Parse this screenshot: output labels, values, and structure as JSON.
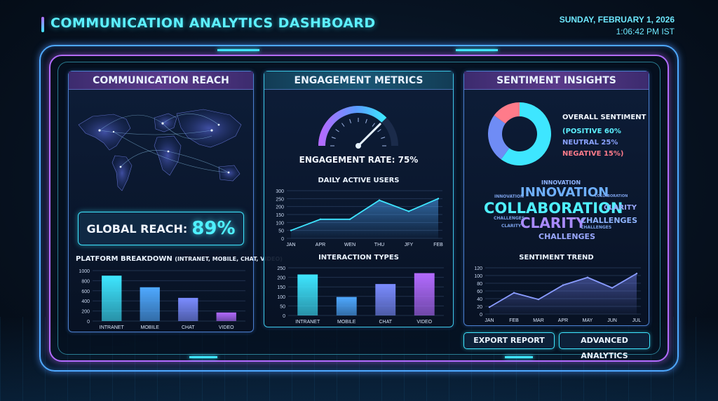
{
  "header": {
    "title": "COMMUNICATION ANALYTICS DASHBOARD",
    "date": "SUNDAY, FEBRUARY 1, 2026",
    "time": "1:06:42 PM IST"
  },
  "colors": {
    "cyan": "#3ee6ff",
    "blue": "#4fa9ff",
    "purple": "#b36bff",
    "indigo": "#7b8cff",
    "negative": "#ff7b8a"
  },
  "reach_panel": {
    "title": "COMMUNICATION REACH",
    "global_reach_label": "GLOBAL REACH:",
    "global_reach_value": "89%",
    "platform_title": "PLATFORM BREAKDOWN",
    "platform_subtitle": "(INTRANET, MOBILE, CHAT, VIDEO)"
  },
  "engagement_panel": {
    "title": "ENGAGEMENT METRICS",
    "engagement_rate_text": "ENGAGEMENT RATE: 75%",
    "engagement_rate_value": 75,
    "dau_title": "DAILY ACTIVE USERS",
    "interaction_title": "INTERACTION TYPES"
  },
  "sentiment_panel": {
    "title": "SENTIMENT INSIGHTS",
    "overall_label": "OVERALL SENTIMENT",
    "positive_text": "(POSITIVE 60%",
    "neutral_text": "NEUTRAL 25%",
    "negative_text": "NEGATIVE 15%)",
    "trend_title": "SENTIMENT TREND",
    "word_cloud": [
      "INNOVATION",
      "INNOVATION",
      "INNOVATION",
      "COLLABORATION",
      "COLLABORATION",
      "CLARITY",
      "CLARITY",
      "CLARITY",
      "CHALLENGES",
      "CHALLENGES",
      "CHALLENGES",
      "CHALLENGES"
    ]
  },
  "actions": {
    "export_label": "EXPORT REPORT",
    "advanced_label": "ADVANCED ANALYTICS"
  },
  "chart_data": [
    {
      "id": "platform",
      "type": "bar",
      "title": "PLATFORM BREAKDOWN (INTRANET, MOBILE, CHAT, VIDEO)",
      "categories": [
        "INTRANET",
        "MOBILE",
        "CHAT",
        "VIDEO"
      ],
      "values": [
        900,
        670,
        460,
        170
      ],
      "ylim": [
        0,
        1000
      ],
      "yticks": [
        0,
        200,
        400,
        600,
        800,
        1000
      ],
      "grid": true
    },
    {
      "id": "dau",
      "type": "area",
      "title": "DAILY ACTIVE USERS",
      "categories": [
        "JAN",
        "APR",
        "WEN",
        "THU",
        "JFY",
        "FEB"
      ],
      "values": [
        50,
        120,
        120,
        240,
        170,
        250
      ],
      "ylim": [
        0,
        300
      ],
      "yticks": [
        0,
        50,
        100,
        150,
        200,
        250,
        300
      ],
      "grid": true
    },
    {
      "id": "interaction",
      "type": "bar",
      "title": "INTERACTION TYPES",
      "categories": [
        "INTRANET",
        "MOBILE",
        "CHAT",
        "VIDEO"
      ],
      "values": [
        215,
        97,
        165,
        222
      ],
      "ylim": [
        0,
        250
      ],
      "yticks": [
        0,
        50,
        100,
        150,
        200,
        250
      ],
      "grid": true
    },
    {
      "id": "sentiment_pie",
      "type": "pie",
      "title": "OVERALL SENTIMENT",
      "categories": [
        "POSITIVE",
        "NEUTRAL",
        "NEGATIVE"
      ],
      "values": [
        60,
        25,
        15
      ]
    },
    {
      "id": "trend",
      "type": "area",
      "title": "SENTIMENT TREND",
      "categories": [
        "JAN",
        "FEB",
        "MAR",
        "APR",
        "MAY",
        "JUN",
        "JUL"
      ],
      "values": [
        18,
        55,
        38,
        75,
        95,
        68,
        105
      ],
      "ylim": [
        0,
        120
      ],
      "yticks": [
        0,
        20,
        40,
        60,
        80,
        100,
        120
      ],
      "grid": true
    }
  ]
}
